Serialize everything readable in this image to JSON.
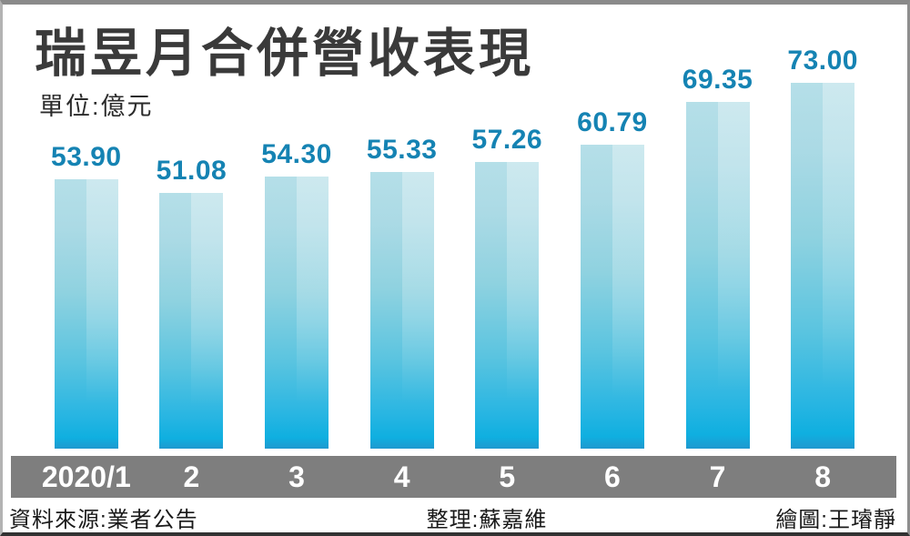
{
  "title": "瑞昱月合併營收表現",
  "unit_label": "單位:億元",
  "footer": {
    "source": "資料來源:業者公告",
    "compiled_by": "整理:蘇嘉維",
    "drawn_by": "繪圖:王璿靜"
  },
  "chart_data": {
    "type": "bar",
    "title": "瑞昱月合併營收表現",
    "unit": "億元",
    "categories": [
      "2020/1",
      "2",
      "3",
      "4",
      "5",
      "6",
      "7",
      "8"
    ],
    "values": [
      53.9,
      51.08,
      54.3,
      55.33,
      57.26,
      60.79,
      69.35,
      73.0
    ],
    "value_labels": [
      "53.90",
      "51.08",
      "54.30",
      "55.33",
      "57.26",
      "60.79",
      "69.35",
      "73.00"
    ],
    "ylim": [
      0,
      80
    ],
    "grid": false,
    "legend": "none",
    "colors": {
      "bar_top": "#b5dfe8",
      "bar_bottom": "#0fafe0",
      "value_label": "#1583b3",
      "axis_band": "#7e7e7e",
      "axis_label": "#ffffff",
      "title": "#3a3a3a"
    }
  }
}
